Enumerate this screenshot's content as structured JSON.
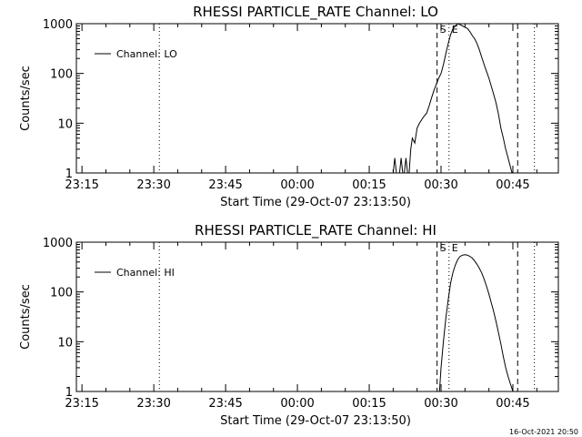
{
  "footer": {
    "timestamp": "16-Oct-2021 20:50"
  },
  "chart_data": [
    {
      "type": "line",
      "title": "RHESSI PARTICLE_RATE Channel: LO",
      "xlabel": "Start Time (29-Oct-07 23:13:50)",
      "ylabel": "Counts/sec",
      "y_scale": "log",
      "ylim": [
        1,
        1000
      ],
      "xlim": [
        "23:13:50",
        "00:54:30"
      ],
      "x_ticks": [
        "23:15",
        "23:30",
        "23:45",
        "00:00",
        "00:15",
        "00:30",
        "00:45"
      ],
      "y_ticks": [
        "1",
        "10",
        "100",
        "1000"
      ],
      "legend": {
        "position": "top-left",
        "entries": [
          "Channel: LO"
        ]
      },
      "grid": false,
      "series": [
        {
          "name": "Channel: LO",
          "x": [
            "00:20:00",
            "00:20:20",
            "00:20:40",
            "00:21:00",
            "00:21:20",
            "00:21:40",
            "00:22:00",
            "00:22:20",
            "00:22:40",
            "00:23:00",
            "00:23:20",
            "00:23:40",
            "00:24:00",
            "00:24:30",
            "00:25:00",
            "00:25:30",
            "00:26:00",
            "00:26:30",
            "00:27:00",
            "00:27:30",
            "00:28:00",
            "00:28:30",
            "00:29:00",
            "00:29:30",
            "00:30:00",
            "00:30:30",
            "00:31:00",
            "00:31:30",
            "00:32:00",
            "00:32:30",
            "00:33:00",
            "00:33:30",
            "00:34:00",
            "00:34:30",
            "00:35:00",
            "00:35:30",
            "00:36:00",
            "00:36:30",
            "00:37:00",
            "00:37:30",
            "00:38:00",
            "00:38:30",
            "00:39:00",
            "00:39:30",
            "00:40:00",
            "00:40:30",
            "00:41:00",
            "00:41:30",
            "00:42:00",
            "00:42:30",
            "00:43:00",
            "00:43:30",
            "00:44:00",
            "00:44:30",
            "00:44:50"
          ],
          "values": [
            1,
            2,
            1,
            1,
            1,
            2,
            1,
            1,
            2,
            1,
            1,
            3,
            5,
            4,
            8,
            10,
            12,
            14,
            16,
            22,
            32,
            45,
            60,
            80,
            100,
            150,
            250,
            400,
            600,
            800,
            900,
            1000,
            950,
            900,
            850,
            800,
            700,
            580,
            500,
            400,
            300,
            210,
            150,
            110,
            80,
            55,
            38,
            25,
            15,
            8,
            5,
            3,
            2,
            1.3,
            1
          ]
        }
      ],
      "markers": [
        {
          "time": "23:31:10",
          "style": "dotted",
          "label": ""
        },
        {
          "time": "00:29:10",
          "style": "dashed",
          "label": "S"
        },
        {
          "time": "00:31:40",
          "style": "dotted",
          "label": "E"
        },
        {
          "time": "00:46:00",
          "style": "dashed",
          "label": ""
        },
        {
          "time": "00:49:30",
          "style": "dotted",
          "label": ""
        }
      ]
    },
    {
      "type": "line",
      "title": "RHESSI PARTICLE_RATE Channel: HI",
      "xlabel": "Start Time (29-Oct-07 23:13:50)",
      "ylabel": "Counts/sec",
      "y_scale": "log",
      "ylim": [
        1,
        1000
      ],
      "xlim": [
        "23:13:50",
        "00:54:30"
      ],
      "x_ticks": [
        "23:15",
        "23:30",
        "23:45",
        "00:00",
        "00:15",
        "00:30",
        "00:45"
      ],
      "y_ticks": [
        "1",
        "10",
        "100",
        "1000"
      ],
      "legend": {
        "position": "top-left",
        "entries": [
          "Channel: HI"
        ]
      },
      "grid": false,
      "series": [
        {
          "name": "Channel: HI",
          "x": [
            "00:29:40",
            "00:30:00",
            "00:30:30",
            "00:31:00",
            "00:31:30",
            "00:32:00",
            "00:32:30",
            "00:33:00",
            "00:33:30",
            "00:34:00",
            "00:34:30",
            "00:35:00",
            "00:35:30",
            "00:36:00",
            "00:36:30",
            "00:37:00",
            "00:37:30",
            "00:38:00",
            "00:38:30",
            "00:39:00",
            "00:39:30",
            "00:40:00",
            "00:40:30",
            "00:41:00",
            "00:41:30",
            "00:42:00",
            "00:42:30",
            "00:43:00",
            "00:43:30",
            "00:44:00",
            "00:44:30",
            "00:45:00"
          ],
          "values": [
            1,
            3,
            10,
            30,
            70,
            150,
            250,
            350,
            450,
            520,
            550,
            560,
            550,
            520,
            480,
            420,
            360,
            300,
            240,
            180,
            130,
            90,
            60,
            40,
            25,
            15,
            9,
            5,
            3,
            2,
            1.4,
            1
          ]
        }
      ],
      "markers": [
        {
          "time": "23:31:10",
          "style": "dotted",
          "label": ""
        },
        {
          "time": "00:29:10",
          "style": "dashed",
          "label": "S"
        },
        {
          "time": "00:31:40",
          "style": "dotted",
          "label": "E"
        },
        {
          "time": "00:46:00",
          "style": "dashed",
          "label": ""
        },
        {
          "time": "00:49:30",
          "style": "dotted",
          "label": ""
        }
      ]
    }
  ]
}
